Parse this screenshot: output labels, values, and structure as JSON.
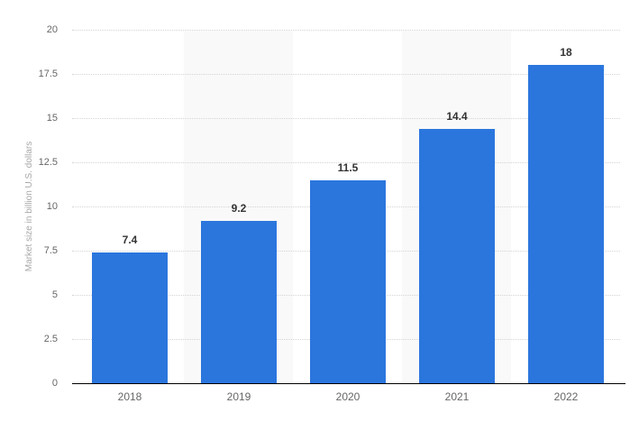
{
  "chart_data": {
    "type": "bar",
    "title": "",
    "categories": [
      "2018",
      "2019",
      "2020",
      "2021",
      "2022"
    ],
    "values": [
      7.4,
      9.2,
      11.5,
      14.4,
      18
    ],
    "xlabel": "",
    "ylabel": "Market size in billion U.S. dollars",
    "ylim": [
      0,
      20
    ],
    "yticks": [
      0,
      2.5,
      5,
      7.5,
      10,
      12.5,
      15,
      17.5,
      20
    ],
    "grid": "horizontal-dotted",
    "legend": "none",
    "shaded_columns": [
      "2019",
      "2021"
    ]
  },
  "style": {
    "bar_color": "#2b76dd",
    "band_color": "#f9f9f9",
    "gridline_color": "#d4d4d4",
    "axis_line_color": "#000000",
    "tick_label_color": "#666666",
    "value_label_color": "#333333",
    "axis_title_color": "#a8a8a8",
    "background_color": "#ffffff"
  }
}
